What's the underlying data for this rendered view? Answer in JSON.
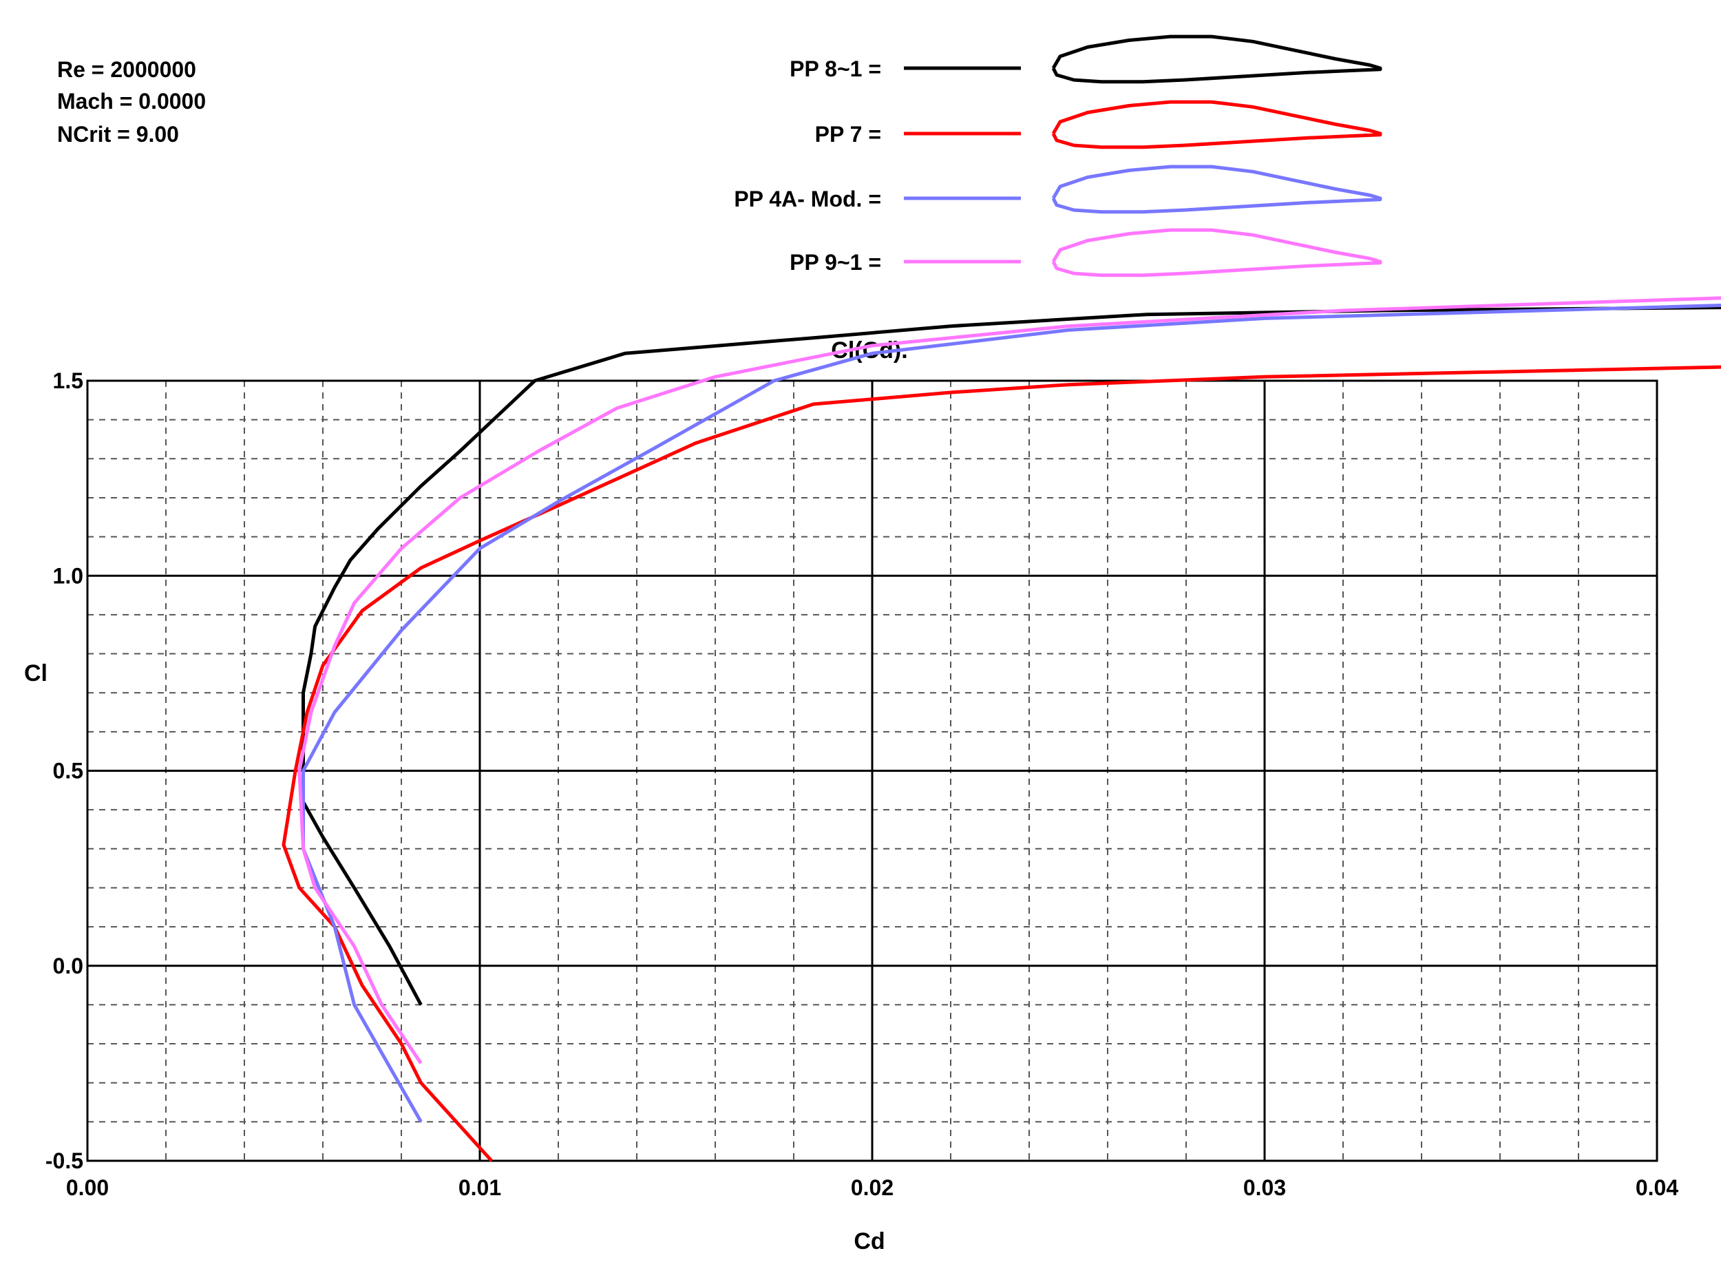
{
  "info": {
    "re": "Re = 2000000",
    "mach": "Mach = 0.0000",
    "ncrit": "NCrit = 9.00"
  },
  "chart_data": {
    "type": "line",
    "title": "Cl(Cd).",
    "xlabel": "Cd",
    "ylabel": "Cl",
    "xlim": [
      0.0,
      0.04
    ],
    "ylim": [
      -0.5,
      1.5
    ],
    "xticks": [
      0.0,
      0.01,
      0.02,
      0.03,
      0.04
    ],
    "xtick_labels": [
      "0.00",
      "0.01",
      "0.02",
      "0.03",
      "0.04"
    ],
    "yticks": [
      -0.5,
      0.0,
      0.5,
      1.0,
      1.5
    ],
    "ytick_labels": [
      "-0.5",
      "0.0",
      "0.5",
      "1.0",
      "1.5"
    ],
    "minor_grid": {
      "x_step": 0.002,
      "y_step": 0.1
    },
    "grid": true,
    "legend_position": "top-center",
    "series": [
      {
        "name": "PP 8~1 =",
        "color": "#000000",
        "points": [
          [
            0.0085,
            -0.1
          ],
          [
            0.0077,
            0.05
          ],
          [
            0.0068,
            0.2
          ],
          [
            0.006,
            0.33
          ],
          [
            0.0055,
            0.42
          ],
          [
            0.0055,
            0.5
          ],
          [
            0.0055,
            0.6
          ],
          [
            0.0055,
            0.7
          ],
          [
            0.0057,
            0.8
          ],
          [
            0.0058,
            0.87
          ],
          [
            0.0063,
            0.97
          ],
          [
            0.0067,
            1.04
          ],
          [
            0.0074,
            1.12
          ],
          [
            0.0085,
            1.23
          ],
          [
            0.0095,
            1.32
          ],
          [
            0.0114,
            1.5
          ],
          [
            0.0137,
            1.57
          ],
          [
            0.0185,
            1.61
          ],
          [
            0.022,
            1.64
          ],
          [
            0.027,
            1.67
          ],
          [
            0.033,
            1.68
          ],
          [
            0.044,
            1.69
          ]
        ]
      },
      {
        "name": "PP 7 =",
        "color": "#ff0000",
        "points": [
          [
            0.0103,
            -0.5
          ],
          [
            0.0085,
            -0.3
          ],
          [
            0.008,
            -0.2
          ],
          [
            0.007,
            -0.05
          ],
          [
            0.0063,
            0.1
          ],
          [
            0.0054,
            0.2
          ],
          [
            0.005,
            0.31
          ],
          [
            0.0053,
            0.5
          ],
          [
            0.0056,
            0.65
          ],
          [
            0.006,
            0.77
          ],
          [
            0.007,
            0.91
          ],
          [
            0.0085,
            1.02
          ],
          [
            0.01,
            1.09
          ],
          [
            0.012,
            1.18
          ],
          [
            0.0155,
            1.34
          ],
          [
            0.0185,
            1.44
          ],
          [
            0.022,
            1.47
          ],
          [
            0.025,
            1.49
          ],
          [
            0.03,
            1.51
          ],
          [
            0.044,
            1.54
          ]
        ]
      },
      {
        "name": "PP 4A- Mod. =",
        "color": "#7777ff",
        "points": [
          [
            0.0085,
            -0.4
          ],
          [
            0.0068,
            -0.1
          ],
          [
            0.0063,
            0.1
          ],
          [
            0.0055,
            0.3
          ],
          [
            0.0055,
            0.5
          ],
          [
            0.0063,
            0.65
          ],
          [
            0.008,
            0.86
          ],
          [
            0.01,
            1.07
          ],
          [
            0.012,
            1.19
          ],
          [
            0.0145,
            1.33
          ],
          [
            0.0175,
            1.5
          ],
          [
            0.02,
            1.57
          ],
          [
            0.025,
            1.63
          ],
          [
            0.03,
            1.66
          ],
          [
            0.044,
            1.7
          ]
        ]
      },
      {
        "name": "PP 9~1 =",
        "color": "#ff77ff",
        "points": [
          [
            0.0085,
            -0.25
          ],
          [
            0.0075,
            -0.1
          ],
          [
            0.0068,
            0.05
          ],
          [
            0.0058,
            0.2
          ],
          [
            0.0055,
            0.3
          ],
          [
            0.0054,
            0.5
          ],
          [
            0.0057,
            0.65
          ],
          [
            0.0063,
            0.82
          ],
          [
            0.0068,
            0.93
          ],
          [
            0.008,
            1.07
          ],
          [
            0.0095,
            1.2
          ],
          [
            0.0115,
            1.32
          ],
          [
            0.0135,
            1.43
          ],
          [
            0.016,
            1.51
          ],
          [
            0.02,
            1.59
          ],
          [
            0.025,
            1.64
          ],
          [
            0.032,
            1.68
          ],
          [
            0.044,
            1.72
          ]
        ]
      }
    ]
  }
}
